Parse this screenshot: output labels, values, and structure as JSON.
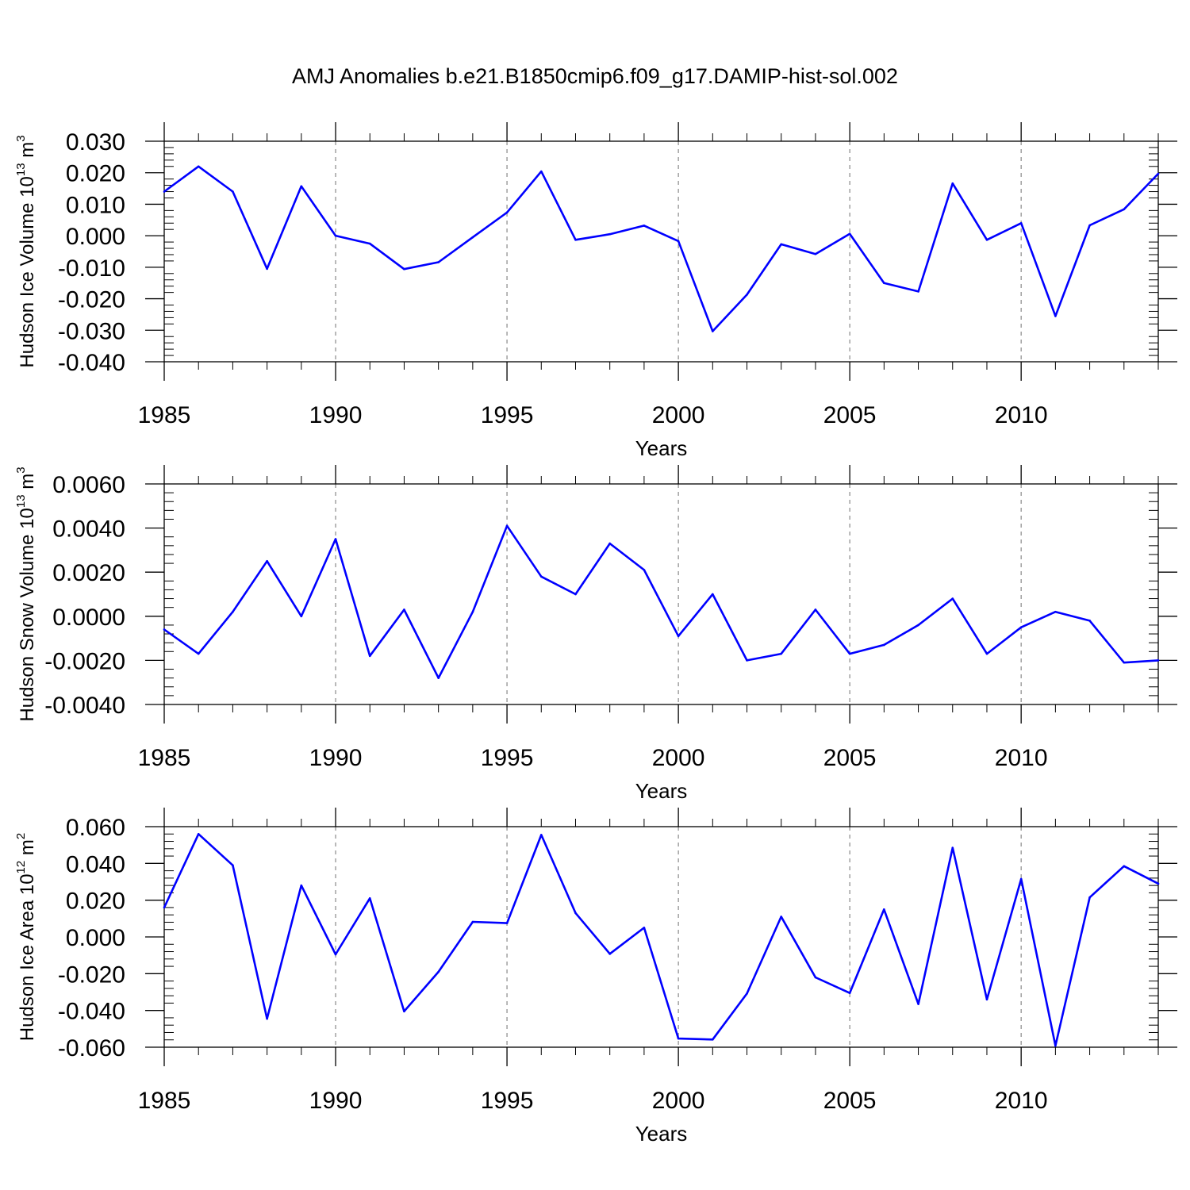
{
  "title": "AMJ Anomalies b.e21.B1850cmip6.f09_g17.DAMIP-hist-sol.002",
  "chart_data": [
    {
      "type": "line",
      "ylabel": "Hudson Ice Volume 10",
      "ylabel_exp": "13",
      "ylabel_unit": " m",
      "ylabel_unit_exp": "3",
      "xlabel": "Years",
      "xlim": [
        1985,
        2014
      ],
      "ylim": [
        -0.04,
        0.03
      ],
      "yticks": [
        -0.04,
        -0.03,
        -0.02,
        -0.01,
        0.0,
        0.01,
        0.02,
        0.03
      ],
      "ytick_labels": [
        "-0.040",
        "-0.030",
        "-0.020",
        "-0.010",
        "0.000",
        "0.010",
        "0.020",
        "0.030"
      ],
      "xticks": [
        1985,
        1990,
        1995,
        2000,
        2005,
        2010
      ],
      "xtick_labels": [
        "1985",
        "1990",
        "1995",
        "2000",
        "2005",
        "2010"
      ],
      "grid_x": [
        1990,
        1995,
        2000,
        2005,
        2010
      ],
      "line_color": "#0000ff",
      "x": [
        1985,
        1986,
        1987,
        1988,
        1989,
        1990,
        1991,
        1992,
        1993,
        1994,
        1995,
        1996,
        1997,
        1998,
        1999,
        2000,
        2001,
        2002,
        2003,
        2004,
        2005,
        2006,
        2007,
        2008,
        2009,
        2010,
        2011,
        2012,
        2013,
        2014
      ],
      "y": [
        0.014,
        0.022,
        0.014,
        -0.0105,
        0.0157,
        0.0,
        -0.0025,
        -0.0106,
        -0.0084,
        -0.0005,
        0.0074,
        0.0204,
        -0.0013,
        0.0005,
        0.0032,
        -0.0017,
        -0.0303,
        -0.0187,
        -0.0027,
        -0.0058,
        0.0006,
        -0.015,
        -0.0177,
        0.0166,
        -0.0013,
        0.004,
        -0.0255,
        0.0033,
        0.0084,
        0.0197
      ]
    },
    {
      "type": "line",
      "ylabel": "Hudson Snow Volume 10",
      "ylabel_exp": "13",
      "ylabel_unit": " m",
      "ylabel_unit_exp": "3",
      "xlabel": "Years",
      "xlim": [
        1985,
        2014
      ],
      "ylim": [
        -0.004,
        0.006
      ],
      "yticks": [
        -0.004,
        -0.002,
        0.0,
        0.002,
        0.004,
        0.006
      ],
      "ytick_labels": [
        "-0.0040",
        "-0.0020",
        "0.0000",
        "0.0020",
        "0.0040",
        "0.0060"
      ],
      "xticks": [
        1985,
        1990,
        1995,
        2000,
        2005,
        2010
      ],
      "xtick_labels": [
        "1985",
        "1990",
        "1995",
        "2000",
        "2005",
        "2010"
      ],
      "grid_x": [
        1990,
        1995,
        2000,
        2005,
        2010
      ],
      "line_color": "#0000ff",
      "x": [
        1985,
        1986,
        1987,
        1988,
        1989,
        1990,
        1991,
        1992,
        1993,
        1994,
        1995,
        1996,
        1997,
        1998,
        1999,
        2000,
        2001,
        2002,
        2003,
        2004,
        2005,
        2006,
        2007,
        2008,
        2009,
        2010,
        2011,
        2012,
        2013,
        2014
      ],
      "y": [
        -0.0006,
        -0.0017,
        0.0002,
        0.0025,
        0.0,
        0.0035,
        -0.0018,
        0.0003,
        -0.0028,
        0.0002,
        0.0041,
        0.0018,
        0.001,
        0.0033,
        0.0021,
        -0.0009,
        0.001,
        -0.002,
        -0.0017,
        0.0003,
        -0.0017,
        -0.0013,
        -0.0004,
        0.0008,
        -0.0017,
        -0.0005,
        0.0002,
        -0.0002,
        -0.0021,
        -0.002
      ]
    },
    {
      "type": "line",
      "ylabel": "Hudson Ice Area 10",
      "ylabel_exp": "12",
      "ylabel_unit": " m",
      "ylabel_unit_exp": "2",
      "xlabel": "Years",
      "xlim": [
        1985,
        2014
      ],
      "ylim": [
        -0.06,
        0.06
      ],
      "yticks": [
        -0.06,
        -0.04,
        -0.02,
        0.0,
        0.02,
        0.04,
        0.06
      ],
      "ytick_labels": [
        "-0.060",
        "-0.040",
        "-0.020",
        "0.000",
        "0.020",
        "0.040",
        "0.060"
      ],
      "xticks": [
        1985,
        1990,
        1995,
        2000,
        2005,
        2010
      ],
      "xtick_labels": [
        "1985",
        "1990",
        "1995",
        "2000",
        "2005",
        "2010"
      ],
      "grid_x": [
        1990,
        1995,
        2000,
        2005,
        2010
      ],
      "line_color": "#0000ff",
      "x": [
        1985,
        1986,
        1987,
        1988,
        1989,
        1990,
        1991,
        1992,
        1993,
        1994,
        1995,
        1996,
        1997,
        1998,
        1999,
        2000,
        2001,
        2002,
        2003,
        2004,
        2005,
        2006,
        2007,
        2008,
        2009,
        2010,
        2011,
        2012,
        2013,
        2014
      ],
      "y": [
        0.016,
        0.056,
        0.039,
        -0.0445,
        0.028,
        -0.0095,
        0.021,
        -0.0405,
        -0.019,
        0.0082,
        0.0075,
        0.0555,
        0.013,
        -0.0092,
        0.005,
        -0.0553,
        -0.0558,
        -0.0308,
        0.011,
        -0.022,
        -0.0305,
        0.015,
        -0.0365,
        0.0485,
        -0.034,
        0.0315,
        -0.0592,
        0.0215,
        0.0385,
        0.029
      ]
    }
  ]
}
